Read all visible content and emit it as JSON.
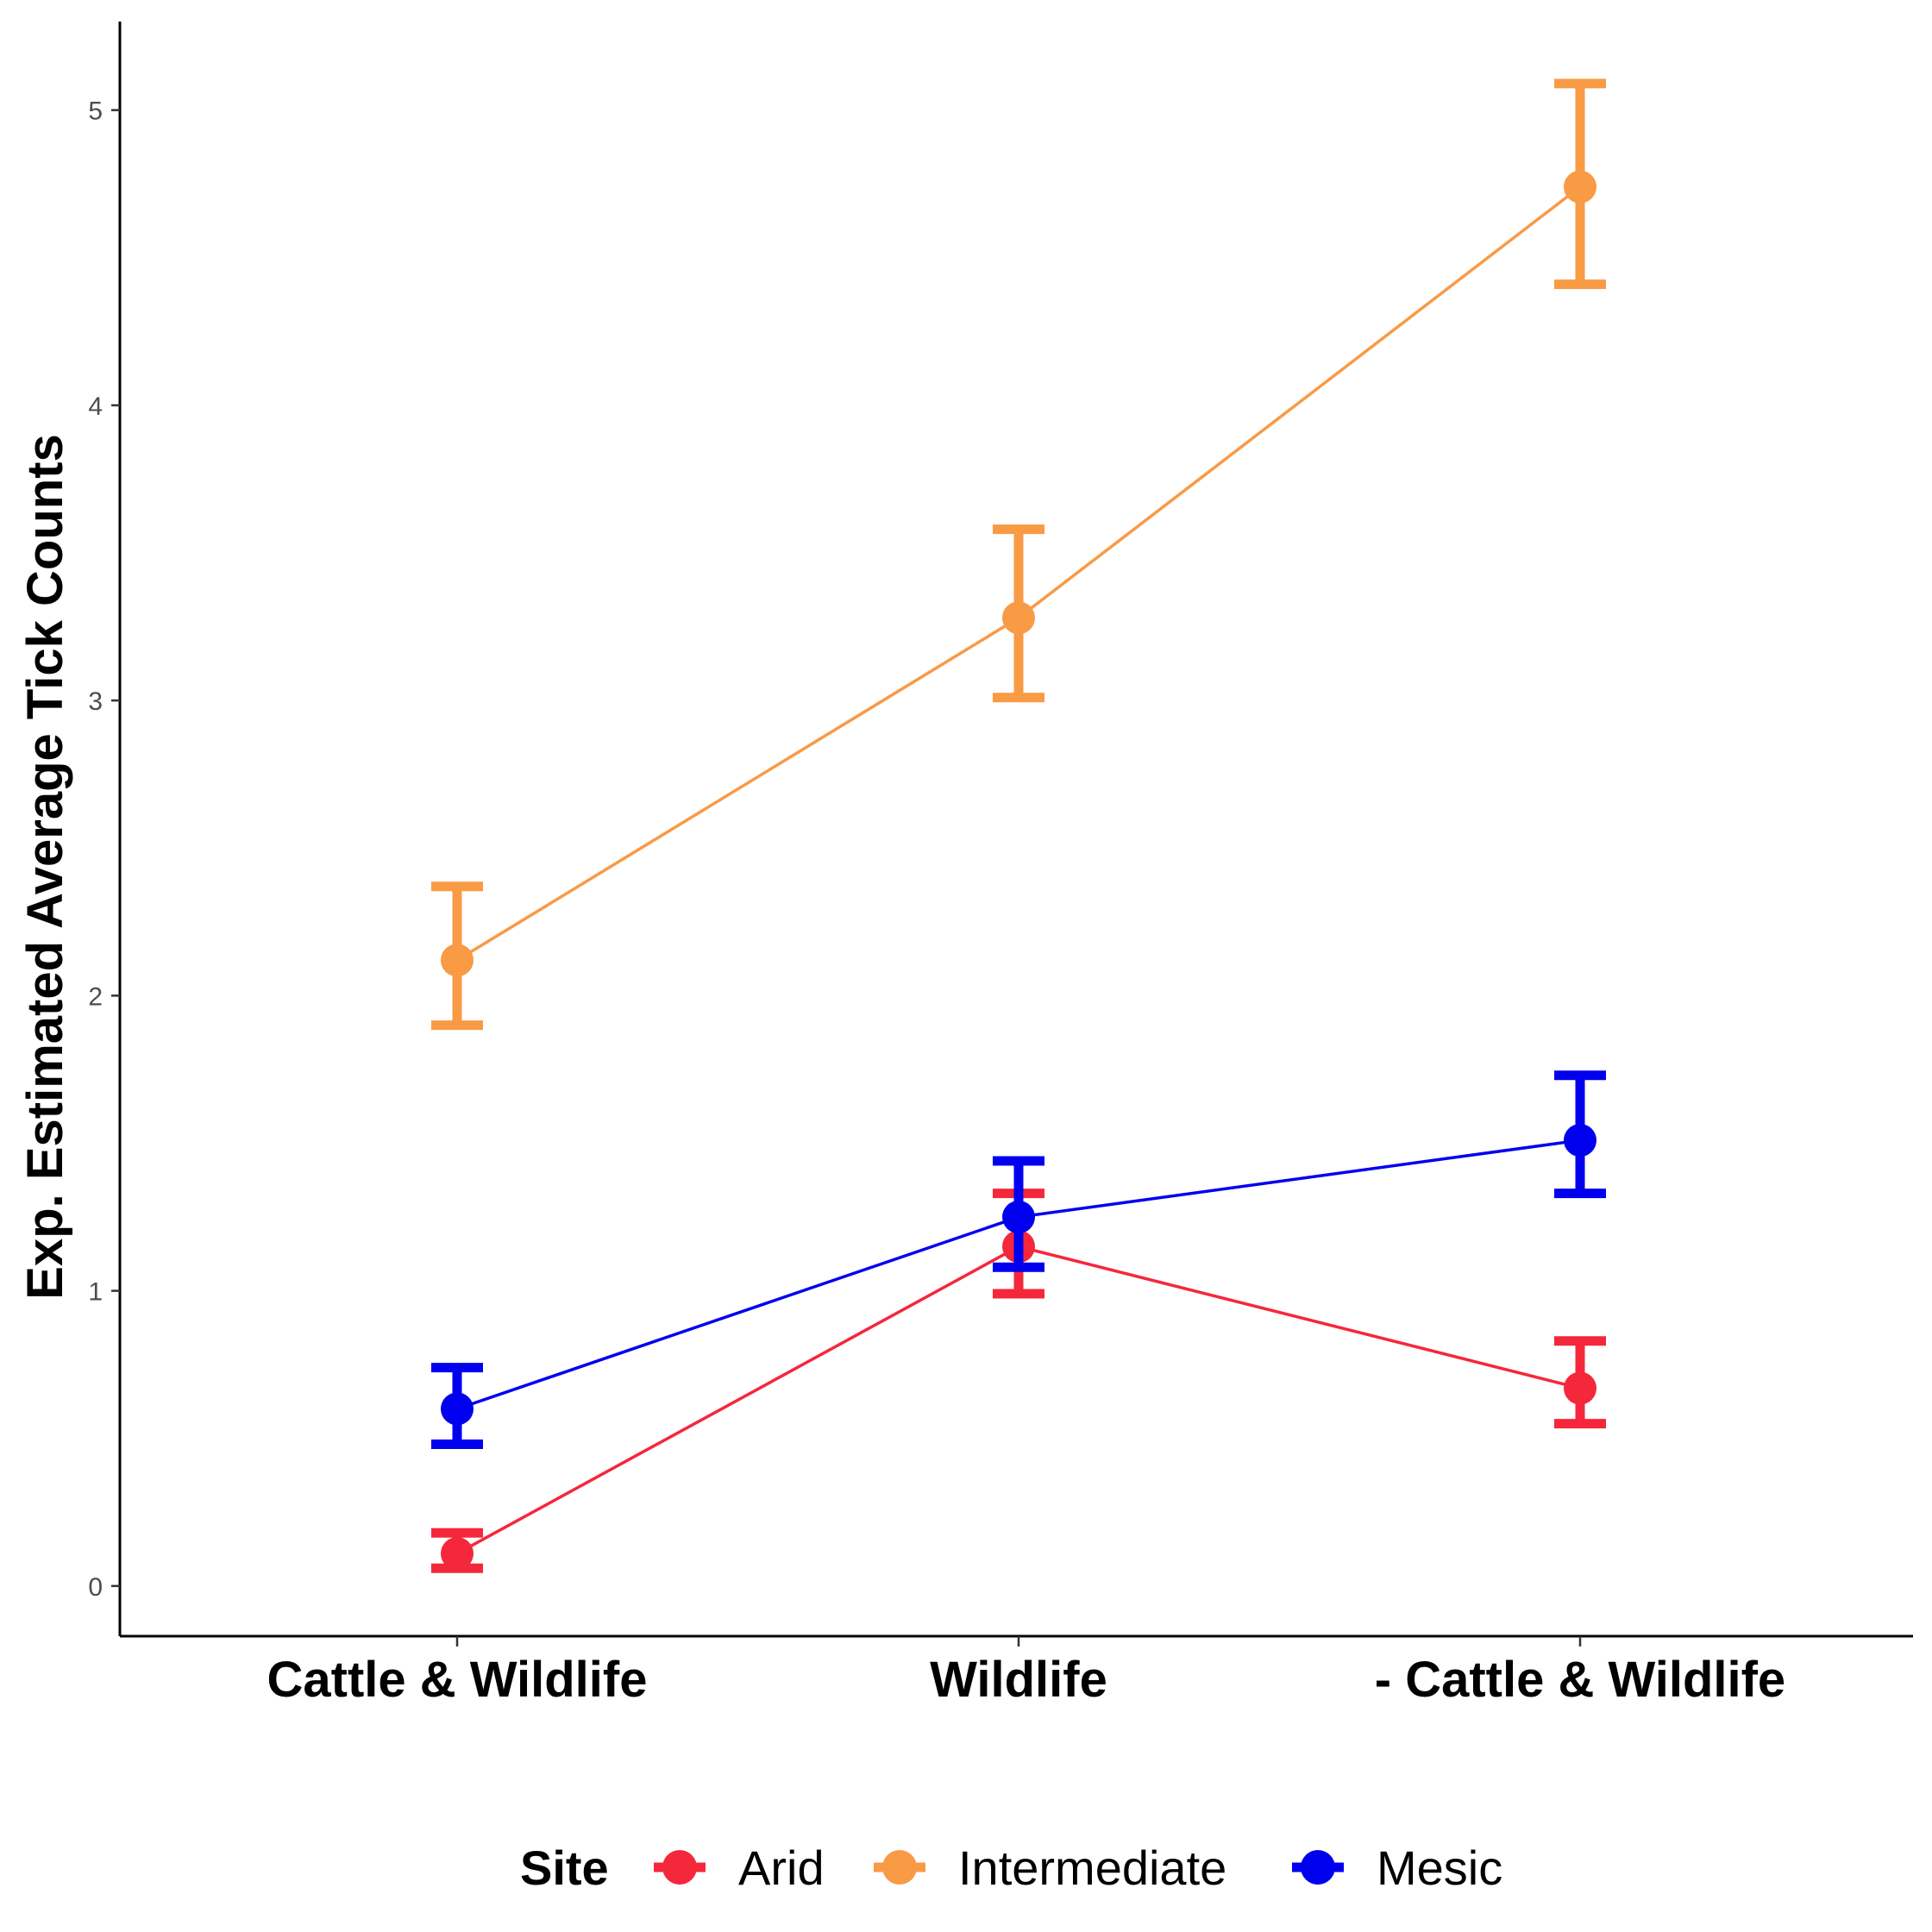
{
  "chart_data": {
    "type": "line",
    "xlabel": "",
    "ylabel": "Exp. Estimated Average Tick Counts",
    "categories": [
      "Cattle & Wildlife",
      "Wildlife",
      "- Cattle & Wildlife"
    ],
    "ylim": [
      -0.17,
      5.3
    ],
    "yticks": [
      0,
      1,
      2,
      3,
      4,
      5
    ],
    "grid": false,
    "legend": {
      "title": "Site",
      "position": "bottom"
    },
    "series": [
      {
        "name": "Arid",
        "color": "#f5273b",
        "values": [
          0.11,
          1.15,
          0.67
        ],
        "lower": [
          0.06,
          0.99,
          0.55
        ],
        "upper": [
          0.18,
          1.33,
          0.83
        ]
      },
      {
        "name": "Intermediate",
        "color": "#f99a45",
        "values": [
          2.12,
          3.28,
          4.74
        ],
        "lower": [
          1.9,
          3.01,
          4.41
        ],
        "upper": [
          2.37,
          3.58,
          5.09
        ]
      },
      {
        "name": "Mesic",
        "color": "#0000ef",
        "values": [
          0.6,
          1.25,
          1.51
        ],
        "lower": [
          0.48,
          1.08,
          1.33
        ],
        "upper": [
          0.74,
          1.44,
          1.73
        ]
      }
    ]
  }
}
